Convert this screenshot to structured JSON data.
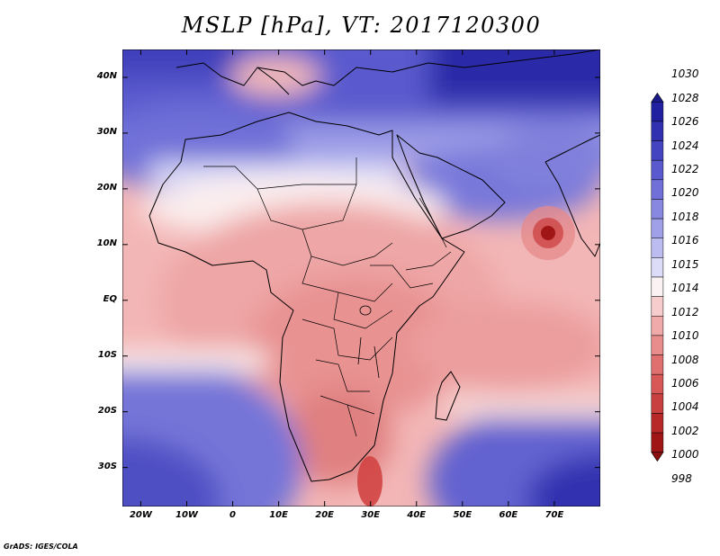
{
  "title": "MSLP [hPa], VT: 2017120300",
  "credit": "GrADS: IGES/COLA",
  "map": {
    "lon_range": [
      -24,
      80
    ],
    "lat_range": [
      -37,
      45
    ],
    "lon_ticks": [
      {
        "value": -20,
        "label": "20W"
      },
      {
        "value": -10,
        "label": "10W"
      },
      {
        "value": 0,
        "label": "0"
      },
      {
        "value": 10,
        "label": "10E"
      },
      {
        "value": 20,
        "label": "20E"
      },
      {
        "value": 30,
        "label": "30E"
      },
      {
        "value": 40,
        "label": "40E"
      },
      {
        "value": 50,
        "label": "50E"
      },
      {
        "value": 60,
        "label": "60E"
      },
      {
        "value": 70,
        "label": "70E"
      }
    ],
    "lat_ticks": [
      {
        "value": 40,
        "label": "40N"
      },
      {
        "value": 30,
        "label": "30N"
      },
      {
        "value": 20,
        "label": "20N"
      },
      {
        "value": 10,
        "label": "10N"
      },
      {
        "value": 0,
        "label": "EQ"
      },
      {
        "value": -10,
        "label": "10S"
      },
      {
        "value": -20,
        "label": "20S"
      },
      {
        "value": -30,
        "label": "30S"
      }
    ],
    "low_center": {
      "lon": 69,
      "lat": 12
    }
  },
  "colorbar": {
    "levels": [
      "1030",
      "1028",
      "1026",
      "1024",
      "1022",
      "1020",
      "1018",
      "1016",
      "1015",
      "1014",
      "1012",
      "1010",
      "1008",
      "1006",
      "1004",
      "1002",
      "1000",
      "998"
    ],
    "colors": [
      "#2020a0",
      "#3030b0",
      "#4444c0",
      "#5a5ace",
      "#7070d8",
      "#8888e0",
      "#a0a0e8",
      "#bcbcf0",
      "#dcdcf8",
      "#fbf3f3",
      "#f6cccc",
      "#f0aaaa",
      "#e88c8c",
      "#e07070",
      "#d85858",
      "#c84040",
      "#b82828",
      "#a01515"
    ],
    "top_color": "#1a1a8a",
    "bottom_color": "#8a1010"
  }
}
